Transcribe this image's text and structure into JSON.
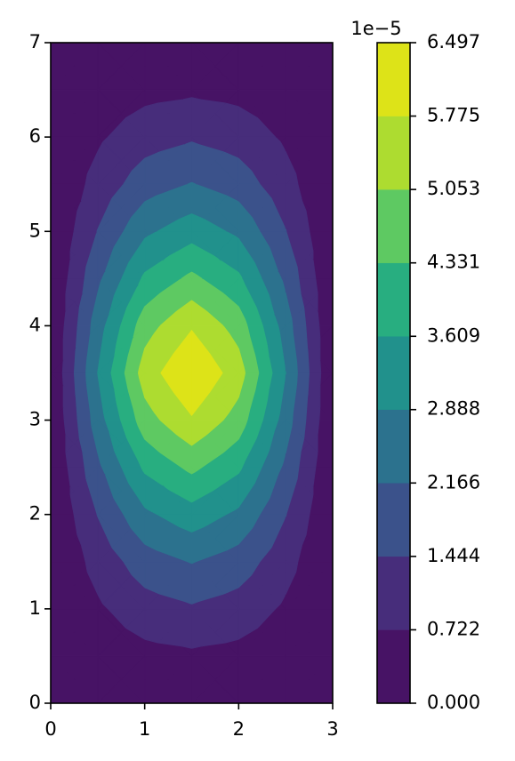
{
  "chart_data": {
    "type": "contourf",
    "x": [
      0,
      0.5,
      1,
      1.5,
      2,
      2.5,
      3
    ],
    "y": [
      0,
      0.5,
      1,
      1.5,
      2,
      2.5,
      3,
      3.5,
      4,
      4.5,
      5,
      5.5,
      6,
      6.5,
      7
    ],
    "z": [
      [
        0,
        0,
        0,
        0,
        0,
        0,
        0
      ],
      [
        0,
        0.27,
        0.5,
        0.6,
        0.5,
        0.27,
        0
      ],
      [
        0,
        0.61,
        1.13,
        1.36,
        1.13,
        0.61,
        0
      ],
      [
        0,
        0.98,
        1.83,
        2.2,
        1.83,
        0.98,
        0
      ],
      [
        0,
        1.47,
        2.74,
        3.3,
        2.74,
        1.47,
        0
      ],
      [
        0,
        2.01,
        3.74,
        4.5,
        3.74,
        2.01,
        0
      ],
      [
        0,
        2.54,
        4.74,
        5.7,
        4.74,
        2.54,
        0
      ],
      [
        0,
        2.9,
        5.4,
        6.497,
        5.4,
        2.9,
        0
      ],
      [
        0,
        2.54,
        4.74,
        5.7,
        4.74,
        2.54,
        0
      ],
      [
        0,
        2.01,
        3.74,
        4.5,
        3.74,
        2.01,
        0
      ],
      [
        0,
        1.47,
        2.74,
        3.3,
        2.74,
        1.47,
        0
      ],
      [
        0,
        0.98,
        1.83,
        2.2,
        1.83,
        0.98,
        0
      ],
      [
        0,
        0.61,
        1.13,
        1.36,
        1.13,
        0.61,
        0
      ],
      [
        0,
        0.27,
        0.5,
        0.6,
        0.5,
        0.27,
        0
      ],
      [
        0,
        0,
        0,
        0,
        0,
        0,
        0
      ]
    ],
    "xlim": [
      0,
      3
    ],
    "xticks": [
      0,
      1,
      2,
      3
    ],
    "ylim": [
      0,
      7
    ],
    "yticks": [
      0,
      1,
      2,
      3,
      4,
      5,
      6,
      7
    ],
    "colorbar": {
      "offset_label": "1e−5",
      "ticks": [
        {
          "value": 0,
          "label": "0.000"
        },
        {
          "value": 0.722,
          "label": "0.722"
        },
        {
          "value": 1.444,
          "label": "1.444"
        },
        {
          "value": 2.166,
          "label": "2.166"
        },
        {
          "value": 2.888,
          "label": "2.888"
        },
        {
          "value": 3.609,
          "label": "3.609"
        },
        {
          "value": 4.331,
          "label": "4.331"
        },
        {
          "value": 5.053,
          "label": "5.053"
        },
        {
          "value": 5.775,
          "label": "5.775"
        },
        {
          "value": 6.497,
          "label": "6.497"
        }
      ],
      "colors": [
        "#471365",
        "#472d7b",
        "#3b528b",
        "#2c728e",
        "#21918c",
        "#28ae80",
        "#5ec962",
        "#addc30",
        "#dde318"
      ]
    }
  }
}
